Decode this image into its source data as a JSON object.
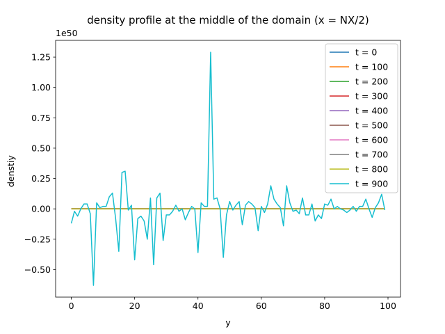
{
  "chart_data": {
    "type": "line",
    "title": "density profile at the middle of the domain (x = NX/2)",
    "xlabel": "y",
    "ylabel": "denstiy",
    "offset_label": "1e50",
    "xlim": [
      -4.95,
      103.95
    ],
    "ylim": [
      -0.727,
      1.388
    ],
    "x_ticks": [
      0,
      20,
      40,
      60,
      80,
      100
    ],
    "y_ticks": [
      -0.5,
      -0.25,
      0.0,
      0.25,
      0.5,
      0.75,
      1.0,
      1.25
    ],
    "y_tick_labels": [
      "−0.50",
      "−0.25",
      "0.00",
      "0.25",
      "0.50",
      "0.75",
      "1.00",
      "1.25"
    ],
    "x_tick_labels": [
      "0",
      "20",
      "40",
      "60",
      "80",
      "100"
    ],
    "grid": false,
    "legend_position": "upper right",
    "x_start": 0,
    "x_step": 1,
    "series": [
      {
        "name": "t = 0",
        "color": "#1f77b4",
        "values": "zeros"
      },
      {
        "name": "t = 100",
        "color": "#ff7f0e",
        "values": "zeros"
      },
      {
        "name": "t = 200",
        "color": "#2ca02c",
        "values": "zeros"
      },
      {
        "name": "t = 300",
        "color": "#d62728",
        "values": "zeros"
      },
      {
        "name": "t = 400",
        "color": "#9467bd",
        "values": "zeros"
      },
      {
        "name": "t = 500",
        "color": "#8c564b",
        "values": "zeros"
      },
      {
        "name": "t = 600",
        "color": "#e377c2",
        "values": "zeros"
      },
      {
        "name": "t = 700",
        "color": "#7f7f7f",
        "values": "zeros"
      },
      {
        "name": "t = 800",
        "color": "#bcbd22",
        "values": "zeros"
      },
      {
        "name": "t = 900",
        "color": "#17becf",
        "values": [
          -0.12,
          -0.02,
          -0.06,
          0.0,
          0.04,
          0.04,
          -0.04,
          -0.63,
          0.05,
          0.01,
          0.02,
          0.02,
          0.1,
          0.13,
          -0.08,
          -0.35,
          0.3,
          0.31,
          -0.01,
          0.03,
          -0.42,
          -0.08,
          -0.06,
          -0.1,
          -0.25,
          0.09,
          -0.46,
          0.09,
          0.13,
          -0.26,
          -0.05,
          -0.05,
          -0.02,
          0.03,
          -0.02,
          0.0,
          -0.09,
          -0.03,
          0.02,
          0.0,
          -0.36,
          0.05,
          0.02,
          0.02,
          1.29,
          0.08,
          0.09,
          0.0,
          -0.4,
          -0.05,
          0.06,
          -0.01,
          0.03,
          0.06,
          -0.13,
          0.03,
          0.06,
          0.04,
          0.01,
          -0.18,
          0.02,
          -0.03,
          0.04,
          0.19,
          0.08,
          0.04,
          0.01,
          -0.14,
          0.19,
          0.05,
          -0.02,
          -0.01,
          -0.04,
          0.09,
          -0.05,
          -0.05,
          0.04,
          -0.1,
          -0.05,
          -0.08,
          0.04,
          0.03,
          0.08,
          0.0,
          0.02,
          0.0,
          -0.01,
          -0.03,
          -0.01,
          0.02,
          -0.02,
          0.02,
          0.02,
          0.08,
          0.0,
          -0.07,
          0.01,
          0.05,
          0.12,
          -0.01
        ]
      }
    ]
  }
}
